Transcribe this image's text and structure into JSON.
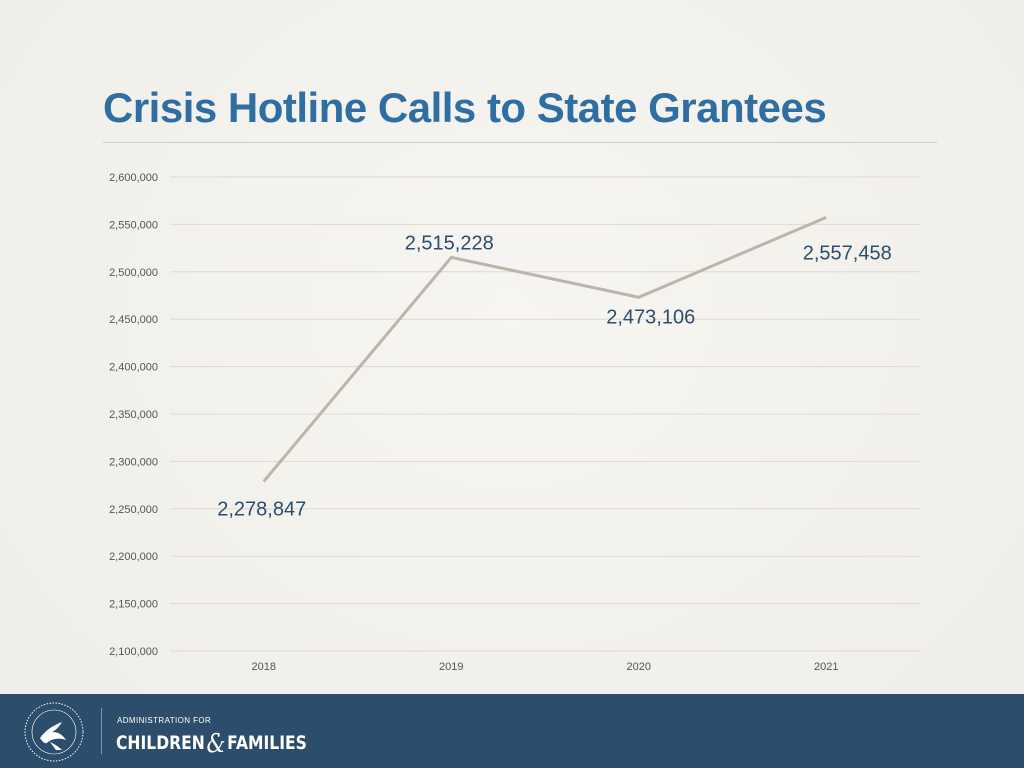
{
  "slide": {
    "title": "Crisis Hotline Calls to State Grantees"
  },
  "footer": {
    "org_line1": "ADMINISTRATION FOR",
    "org_word1": "CHILDREN",
    "org_amp": "&",
    "org_word2": "FAMILIES",
    "seal_icon": "hhs-eagle-seal-icon",
    "background_color": "#2c4d6b"
  },
  "chart_data": {
    "type": "line",
    "title": "Crisis Hotline Calls to State Grantees",
    "xlabel": "",
    "ylabel": "",
    "categories": [
      "2018",
      "2019",
      "2020",
      "2021"
    ],
    "values": [
      2278847,
      2515228,
      2473106,
      2557458
    ],
    "data_labels": [
      "2,278,847",
      "2,515,228",
      "2,473,106",
      "2,557,458"
    ],
    "ylim": [
      2100000,
      2600000
    ],
    "yticks": [
      2100000,
      2150000,
      2200000,
      2250000,
      2300000,
      2350000,
      2400000,
      2450000,
      2500000,
      2550000,
      2600000
    ],
    "ytick_labels": [
      "2,100,000",
      "2,150,000",
      "2,200,000",
      "2,250,000",
      "2,300,000",
      "2,350,000",
      "2,400,000",
      "2,450,000",
      "2,500,000",
      "2,550,000",
      "2,600,000"
    ],
    "grid": true,
    "legend": "none",
    "line_color": "#bdb5aa",
    "label_color": "#2c4d6b"
  }
}
